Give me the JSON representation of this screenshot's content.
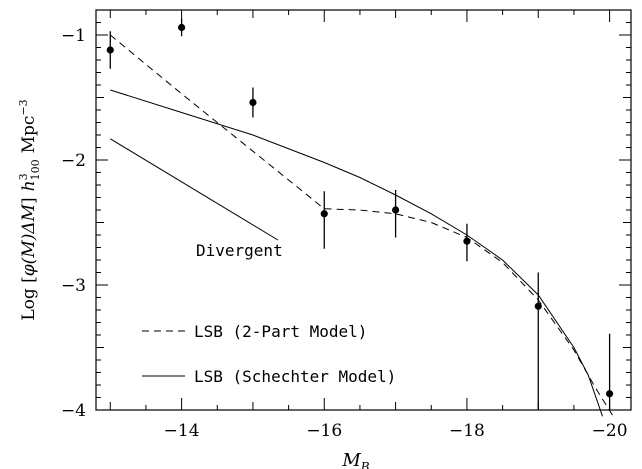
{
  "chart_data": {
    "type": "line",
    "xlabel": "M",
    "xlabel_sub": "B",
    "ylabel_parts": {
      "prefix": "Log [",
      "phi": "φ(M)ΔM",
      "close": "]",
      "h": "h",
      "h_sup": "3",
      "h_sub": "100",
      "unit": "Mpc",
      "unit_sup": "−3"
    },
    "xlim": [
      -12.8,
      -20.3
    ],
    "ylim": [
      -4,
      -0.8
    ],
    "x_ticks": [
      -14,
      -16,
      -18,
      -20
    ],
    "x_tick_labels": [
      "−14",
      "−16",
      "−18",
      "−20"
    ],
    "y_ticks": [
      -1,
      -2,
      -3,
      -4
    ],
    "y_tick_labels": [
      "−1",
      "−2",
      "−3",
      "−4"
    ],
    "grid": false,
    "series": [
      {
        "name": "LSB (2-Part Model)",
        "style": "dashed",
        "x": [
          -13.0,
          -14.0,
          -15.0,
          -16.0,
          -16.5,
          -17.0,
          -17.5,
          -18.0,
          -18.5,
          -19.0,
          -19.5,
          -19.8,
          -20.05
        ],
        "y": [
          -1.0,
          -1.47,
          -1.93,
          -2.39,
          -2.4,
          -2.43,
          -2.5,
          -2.62,
          -2.82,
          -3.12,
          -3.52,
          -3.82,
          -4.05
        ]
      },
      {
        "name": "LSB (Schechter Model)",
        "style": "solid",
        "x": [
          -13.0,
          -14.0,
          -15.0,
          -16.0,
          -16.5,
          -17.0,
          -17.5,
          -18.0,
          -18.5,
          -19.0,
          -19.5,
          -19.7,
          -19.9
        ],
        "y": [
          -1.44,
          -1.62,
          -1.8,
          -2.02,
          -2.14,
          -2.28,
          -2.43,
          -2.6,
          -2.8,
          -3.08,
          -3.5,
          -3.72,
          -4.05
        ]
      },
      {
        "name": "Divergent",
        "style": "solid",
        "x": [
          -13.0,
          -15.35
        ],
        "y": [
          -1.83,
          -2.64
        ]
      }
    ],
    "points": {
      "x": [
        -13.0,
        -14.0,
        -15.0,
        -16.0,
        -17.0,
        -18.0,
        -19.0,
        -20.0
      ],
      "y": [
        -1.12,
        -0.94,
        -1.54,
        -2.43,
        -2.4,
        -2.65,
        -3.17,
        -3.87
      ],
      "err_low": [
        0.15,
        0.07,
        0.12,
        0.28,
        0.22,
        0.16,
        0.84,
        0.5
      ],
      "err_high": [
        0.15,
        0.07,
        0.12,
        0.18,
        0.16,
        0.14,
        0.27,
        0.48
      ]
    },
    "legend": [
      {
        "label": "LSB (2-Part Model)",
        "style": "dashed"
      },
      {
        "label": "LSB (Schechter Model)",
        "style": "solid"
      }
    ],
    "annotations": [
      {
        "text": "Divergent",
        "x": -16.25,
        "y": -2.7
      }
    ]
  }
}
